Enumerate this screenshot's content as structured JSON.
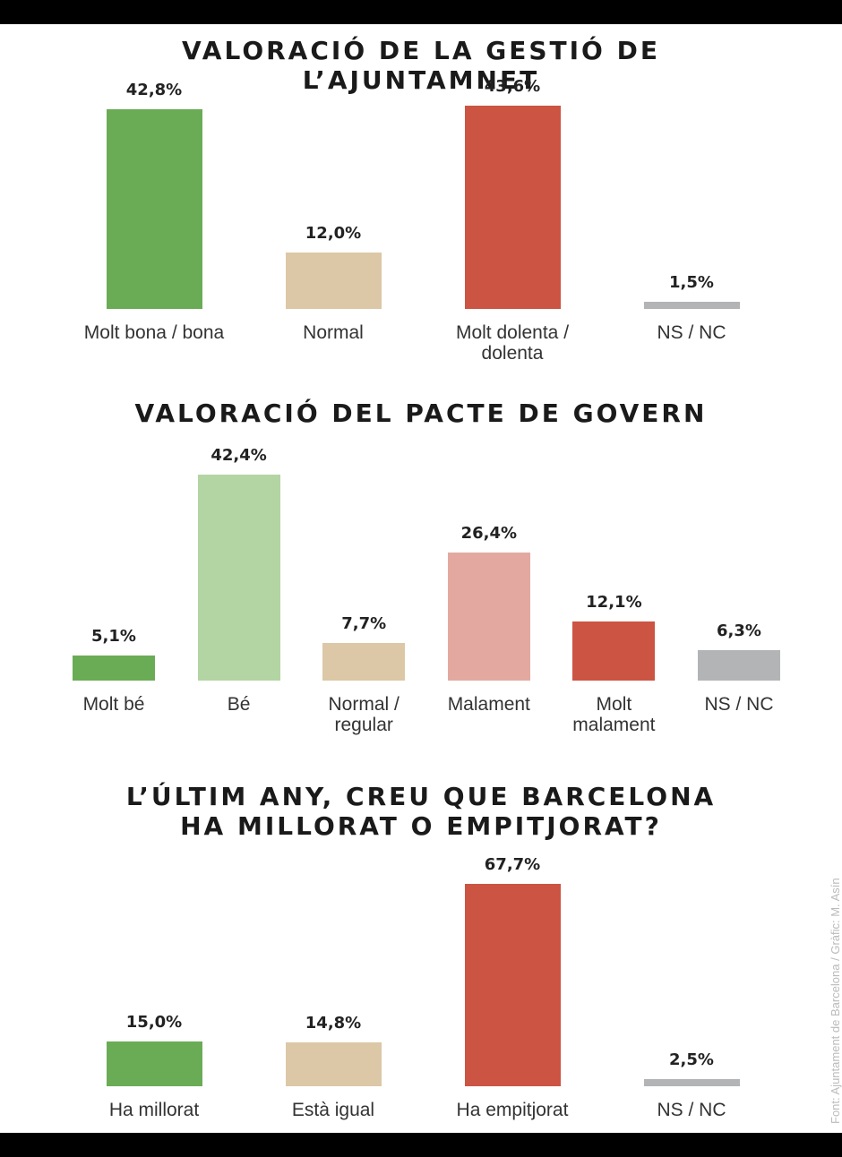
{
  "chart_data": [
    {
      "type": "bar",
      "title": "VALORACIÓ DE LA GESTIÓ DE L’AJUNTAMNET",
      "categories": [
        "Molt bona / bona",
        "Normal",
        "Molt dolenta / dolenta",
        "NS / NC"
      ],
      "values": [
        42.8,
        12.0,
        43.6,
        1.5
      ],
      "value_labels": [
        "42,8%",
        "12,0%",
        "43,6%",
        "1,5%"
      ],
      "colors": [
        "#6aac55",
        "#dcc8a6",
        "#cc5443",
        "#b3b4b6"
      ]
    },
    {
      "type": "bar",
      "title": "VALORACIÓ DEL PACTE DE GOVERN",
      "categories": [
        "Molt bé",
        "Bé",
        "Normal / regular",
        "Malament",
        "Molt malament",
        "NS / NC"
      ],
      "values": [
        5.1,
        42.4,
        7.7,
        26.4,
        12.1,
        6.3
      ],
      "value_labels": [
        "5,1%",
        "42,4%",
        "7,7%",
        "26,4%",
        "12,1%",
        "6,3%"
      ],
      "colors": [
        "#6aac55",
        "#b3d4a3",
        "#dcc8a6",
        "#e3a9a0",
        "#cc5443",
        "#b3b4b6"
      ]
    },
    {
      "type": "bar",
      "title": "L’ÚLTIM ANY, CREU QUE BARCELONA HA MILLORAT O EMPITJORAT?",
      "categories": [
        "Ha millorat",
        "Està igual",
        "Ha empitjorat",
        "NS / NC"
      ],
      "values": [
        15.0,
        14.8,
        67.7,
        2.5
      ],
      "value_labels": [
        "15,0%",
        "14,8%",
        "67,7%",
        "2,5%"
      ],
      "colors": [
        "#6aac55",
        "#dcc8a6",
        "#cc5443",
        "#b3b4b6"
      ]
    }
  ],
  "source": "Font: Ajuntament de Barcelona / Gràfic: M. Asín"
}
